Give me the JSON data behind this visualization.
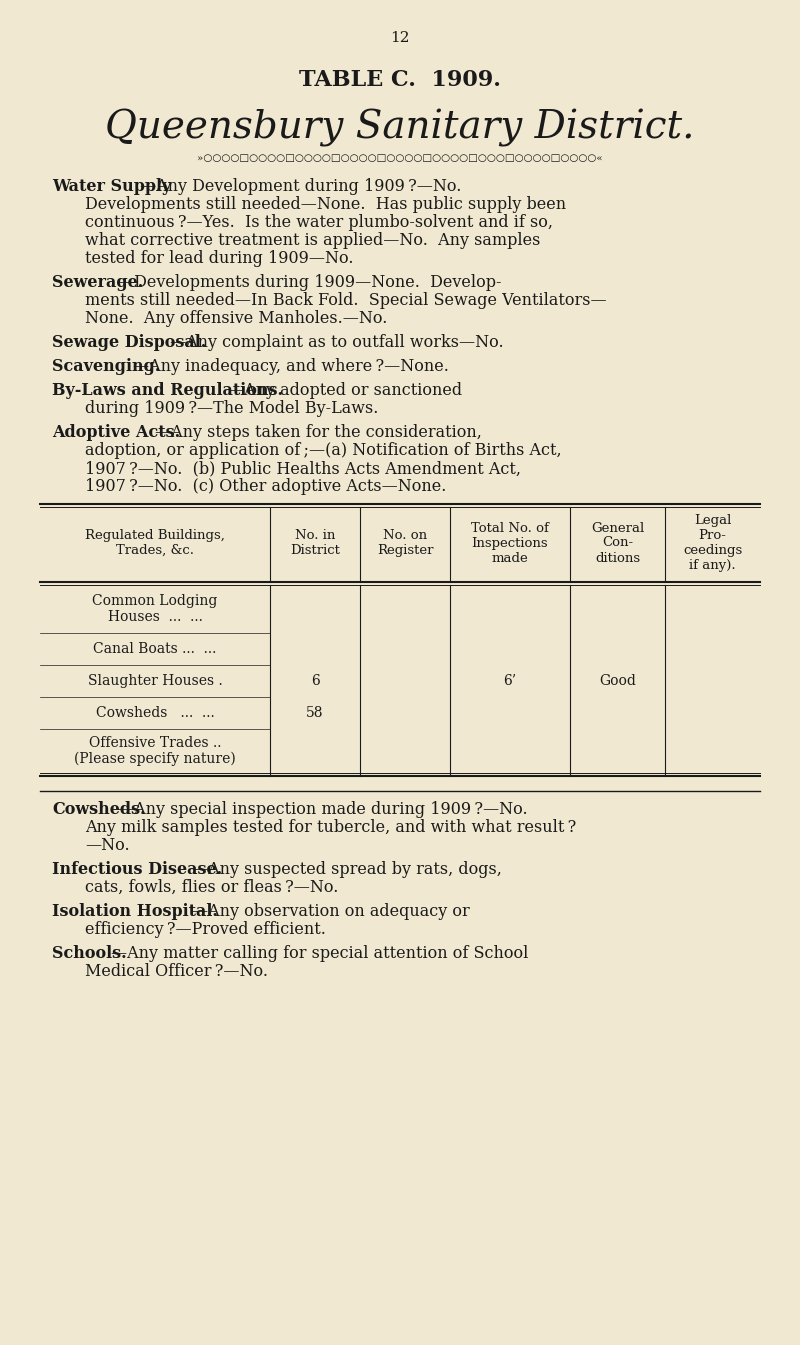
{
  "bg_color": "#f0e8d0",
  "text_color": "#1a1a1a",
  "page_number": "12",
  "table_title": "TABLE C.  1909.",
  "district_title": "Queensbury Sanitary District.",
  "decorative_line": "»○○○○○○○○○○○○○○○○○○○○○○○○○○○○○○«",
  "sections": [
    {
      "bold_prefix": "Water Supply",
      "text": "—Any Development during 1909 ?—No.\n        Developments still needed—None.  Has public supply been\n        continuous ?—Yes.  Is the water plumbo-solvent and if so,\n        what corrective treatment is applied—No.  Any samples\n        tested for lead during 1909—No."
    },
    {
      "bold_prefix": "Sewerage.",
      "text": "—Developments during 1909—None.  Develop-\n        ments still needed—In Back Fold.  Special Sewage Ventilators—\n        None.  Any offensive Manholes.—No."
    },
    {
      "bold_prefix": "Sewage Disposal.",
      "text": "—Any complaint as to outfall works—No."
    },
    {
      "bold_prefix": "Scavenging.",
      "text": "—Any inadequacy, and where ?—None."
    },
    {
      "bold_prefix": "By-Laws and Regulations.",
      "text": "—Any adopted or sanctioned\n        during 1909 ?—The Model By-Laws."
    },
    {
      "bold_prefix": "Adoptive Acts.",
      "text": "—Any steps taken for the consideration,\n        adoption, or application of ;—(a) Notification of Births Act,\n        1907 ?—No.  (b) Public Healths Acts Amendment Act,\n        1907 ?—No.  (c) Other adoptive Acts—None."
    }
  ],
  "table_headers": [
    "Regulated Buildings,\nTrades, &c.",
    "No. in\nDistrict",
    "No. on\nRegister",
    "Total No. of\nInspections\nmade",
    "General\nCon-\nditions",
    "Legal\nPro-\nceedings\nif any)."
  ],
  "table_rows": [
    [
      "Common Lodging\nHouses  ...  ...",
      "",
      "",
      "",
      "",
      ""
    ],
    [
      "Canal Boats ...  ...",
      "",
      "",
      "",
      "",
      ""
    ],
    [
      "Slaughter Houses .",
      "6",
      "",
      "6’",
      "Good",
      ""
    ],
    [
      "Cowsheds   ...  ...",
      "58",
      "",
      "",
      "",
      ""
    ],
    [
      "Offensive Trades ..\n(Please specify nature)",
      "",
      "",
      "",
      "",
      ""
    ]
  ],
  "bottom_sections": [
    {
      "bold_prefix": "Cowsheds.",
      "text": "—Any special inspection made during 1909 ?—No.\n        Any milk samples tested for tubercle, and with what result ?\n        —No."
    },
    {
      "bold_prefix": "Infectious Disease.",
      "text": "—Any suspected spread by rats, dogs,\n        cats, fowls, flies or fleas ?—No."
    },
    {
      "bold_prefix": "Isolation Hospital.",
      "text": "—Any observation on adequacy or\n        efficiency ?—Proved efficient."
    },
    {
      "bold_prefix": "Schools.",
      "text": "—Any matter calling for special attention of School\n        Medical Officer ?—No."
    }
  ]
}
